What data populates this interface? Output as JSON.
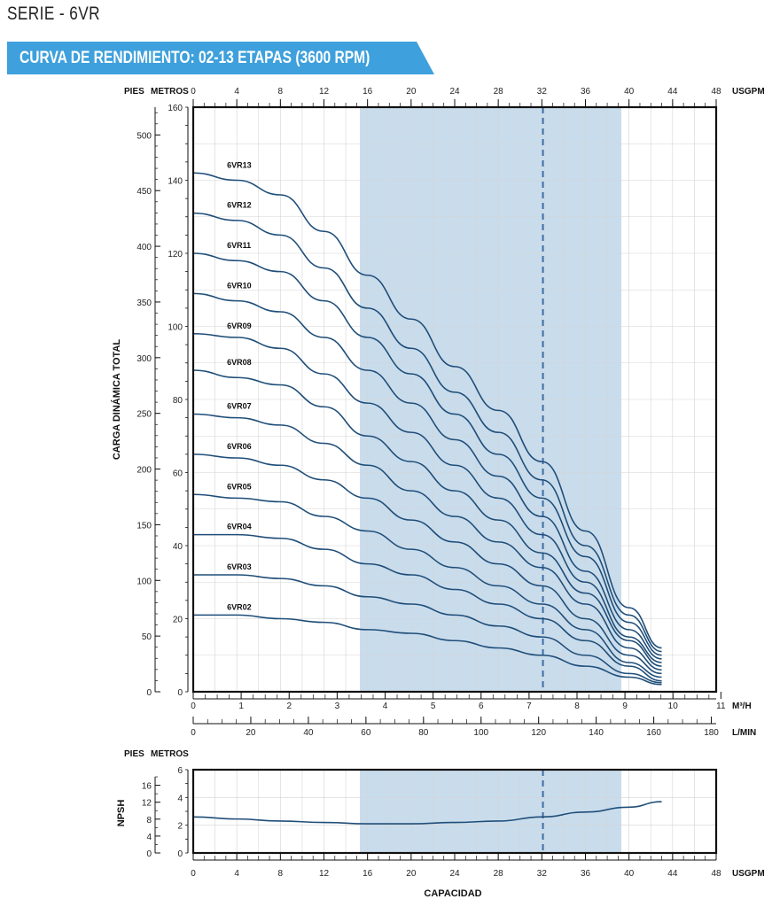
{
  "header": {
    "serie": "SERIE - 6VR",
    "banner": "CURVA DE RENDIMIENTO: 02-13 ETAPAS (3600 RPM)",
    "banner_color": "#3ea0dc"
  },
  "colors": {
    "curve": "#1f4e79",
    "band": "#c9dcec",
    "grid": "#d4d4d4",
    "marker": "#3b6fa8"
  },
  "chart_data": [
    {
      "type": "line",
      "title": "",
      "ylabel": "CARGA DINÁMICA TOTAL",
      "units": {
        "left_outer": "PIES",
        "left_inner": "METROS",
        "top": "USGPM",
        "bottom_1": "M³/H",
        "bottom_2": "L/MIN"
      },
      "x_usgpm_range": [
        0,
        48
      ],
      "x_usgpm_ticks": [
        "0",
        "4",
        "8",
        "12",
        "16",
        "20",
        "24",
        "28",
        "32",
        "36",
        "40",
        "44",
        "48"
      ],
      "x_m3h_ticks": [
        "0",
        "1",
        "2",
        "3",
        "4",
        "5",
        "6",
        "7",
        "8",
        "9",
        "10",
        "11"
      ],
      "x_lmin_ticks": [
        "0",
        "20",
        "40",
        "60",
        "80",
        "100",
        "120",
        "140",
        "160",
        "180"
      ],
      "y_metros_range": [
        0,
        160
      ],
      "y_metros_ticks": [
        "0",
        "20",
        "40",
        "60",
        "80",
        "100",
        "120",
        "140",
        "160"
      ],
      "y_pies_ticks": [
        "0",
        "50",
        "100",
        "150",
        "200",
        "250",
        "300",
        "350",
        "400",
        "450",
        "500"
      ],
      "shaded_band_usgpm": [
        15.3,
        39.3
      ],
      "marker_usgpm": 32.1,
      "grid": true,
      "series": [
        {
          "name": "6VR13",
          "x": [
            0,
            4,
            8,
            12,
            16,
            20,
            24,
            28,
            32,
            36,
            40,
            43
          ],
          "y": [
            142,
            140,
            136,
            126,
            114,
            102,
            89,
            77,
            63,
            44,
            23,
            12
          ]
        },
        {
          "name": "6VR12",
          "x": [
            0,
            4,
            8,
            12,
            16,
            20,
            24,
            28,
            32,
            36,
            40,
            43
          ],
          "y": [
            131,
            129,
            125,
            116,
            105,
            94,
            82,
            71,
            58,
            40,
            21,
            11
          ]
        },
        {
          "name": "6VR11",
          "x": [
            0,
            4,
            8,
            12,
            16,
            20,
            24,
            28,
            32,
            36,
            40,
            43
          ],
          "y": [
            120,
            118,
            115,
            107,
            97,
            87,
            76,
            65,
            53,
            37,
            19,
            10
          ]
        },
        {
          "name": "6VR10",
          "x": [
            0,
            4,
            8,
            12,
            16,
            20,
            24,
            28,
            32,
            36,
            40,
            43
          ],
          "y": [
            109,
            107,
            104,
            97,
            88,
            79,
            69,
            59,
            48,
            33,
            17,
            9
          ]
        },
        {
          "name": "6VR09",
          "x": [
            0,
            4,
            8,
            12,
            16,
            20,
            24,
            28,
            32,
            36,
            40,
            43
          ],
          "y": [
            98,
            97,
            94,
            87,
            79,
            71,
            62,
            53,
            43,
            30,
            15,
            8
          ]
        },
        {
          "name": "6VR08",
          "x": [
            0,
            4,
            8,
            12,
            16,
            20,
            24,
            28,
            32,
            36,
            40,
            43
          ],
          "y": [
            88,
            86,
            84,
            78,
            70,
            63,
            55,
            47,
            38,
            27,
            14,
            7
          ]
        },
        {
          "name": "6VR07",
          "x": [
            0,
            4,
            8,
            12,
            16,
            20,
            24,
            28,
            32,
            36,
            40,
            43
          ],
          "y": [
            76,
            75,
            73,
            68,
            62,
            55,
            48,
            41,
            34,
            24,
            12,
            6
          ]
        },
        {
          "name": "6VR06",
          "x": [
            0,
            4,
            8,
            12,
            16,
            20,
            24,
            28,
            32,
            36,
            40,
            43
          ],
          "y": [
            65,
            64,
            62,
            58,
            53,
            47,
            41,
            35,
            29,
            20,
            10,
            5
          ]
        },
        {
          "name": "6VR05",
          "x": [
            0,
            4,
            8,
            12,
            16,
            20,
            24,
            28,
            32,
            36,
            40,
            43
          ],
          "y": [
            54,
            53,
            52,
            48,
            44,
            39,
            34,
            29,
            24,
            17,
            8,
            4
          ]
        },
        {
          "name": "6VR04",
          "x": [
            0,
            4,
            8,
            12,
            16,
            20,
            24,
            28,
            32,
            36,
            40,
            43
          ],
          "y": [
            43,
            43,
            42,
            39,
            35,
            32,
            28,
            24,
            20,
            14,
            7,
            3
          ]
        },
        {
          "name": "6VR03",
          "x": [
            0,
            4,
            8,
            12,
            16,
            20,
            24,
            28,
            32,
            36,
            40,
            43
          ],
          "y": [
            32,
            32,
            31,
            29,
            26,
            24,
            21,
            18,
            15,
            10,
            5,
            2.5
          ]
        },
        {
          "name": "6VR02",
          "x": [
            0,
            4,
            8,
            12,
            16,
            20,
            24,
            28,
            32,
            36,
            40,
            43
          ],
          "y": [
            21,
            21,
            20,
            19,
            17,
            16,
            14,
            12,
            10,
            7,
            4,
            2
          ]
        }
      ]
    },
    {
      "type": "line",
      "title": "",
      "ylabel": "NPSH",
      "xlabel": "CAPACIDAD",
      "units": {
        "left_outer": "PIES",
        "left_inner": "METROS",
        "bottom": "USGPM"
      },
      "x_usgpm_range": [
        0,
        48
      ],
      "x_usgpm_ticks": [
        "0",
        "4",
        "8",
        "12",
        "16",
        "20",
        "24",
        "28",
        "32",
        "36",
        "40",
        "44",
        "48"
      ],
      "y_metros_range": [
        0,
        6
      ],
      "y_metros_ticks": [
        "0",
        "2",
        "4",
        "6"
      ],
      "y_pies_ticks": [
        "0",
        "4",
        "8",
        "12",
        "16"
      ],
      "shaded_band_usgpm": [
        15.3,
        39.3
      ],
      "marker_usgpm": 32.1,
      "grid": true,
      "series": [
        {
          "x": [
            0,
            4,
            8,
            12,
            16,
            20,
            24,
            28,
            32,
            36,
            40,
            43
          ],
          "y": [
            2.6,
            2.45,
            2.3,
            2.2,
            2.1,
            2.1,
            2.2,
            2.3,
            2.6,
            2.95,
            3.3,
            3.7
          ]
        }
      ]
    }
  ]
}
